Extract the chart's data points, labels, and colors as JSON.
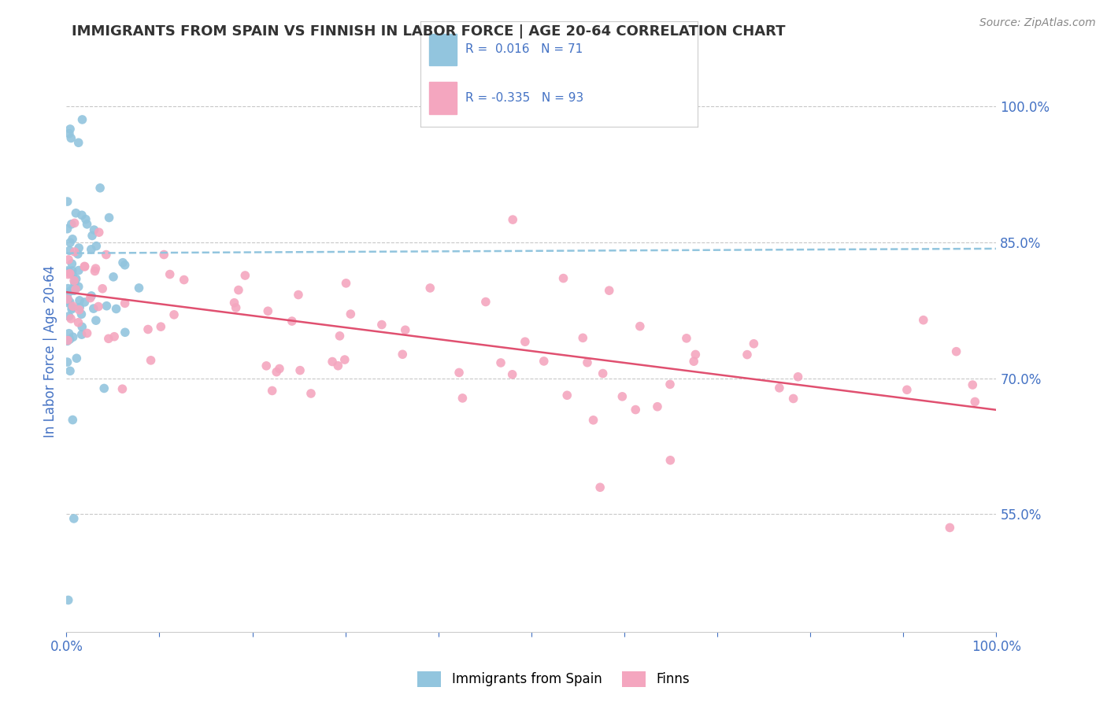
{
  "title": "IMMIGRANTS FROM SPAIN VS FINNISH IN LABOR FORCE | AGE 20-64 CORRELATION CHART",
  "source": "Source: ZipAtlas.com",
  "ylabel": "In Labor Force | Age 20-64",
  "xlim": [
    0.0,
    1.0
  ],
  "ylim": [
    0.42,
    1.04
  ],
  "yticks": [
    0.55,
    0.7,
    0.85,
    1.0
  ],
  "ytick_labels": [
    "55.0%",
    "70.0%",
    "85.0%",
    "100.0%"
  ],
  "r_spain": 0.016,
  "n_spain": 71,
  "r_finns": -0.335,
  "n_finns": 93,
  "color_spain": "#92c5de",
  "color_finns": "#f4a6bf",
  "trendline_spain_color": "#92c5de",
  "trendline_finns_color": "#e05070",
  "legend_label_spain": "Immigrants from Spain",
  "legend_label_finns": "Finns",
  "background_color": "#ffffff",
  "grid_color": "#c8c8c8",
  "title_color": "#333333",
  "axis_label_color": "#4472c4",
  "trendline_spain_start_y": 0.838,
  "trendline_spain_end_y": 0.843,
  "trendline_finns_start_y": 0.795,
  "trendline_finns_end_y": 0.665
}
